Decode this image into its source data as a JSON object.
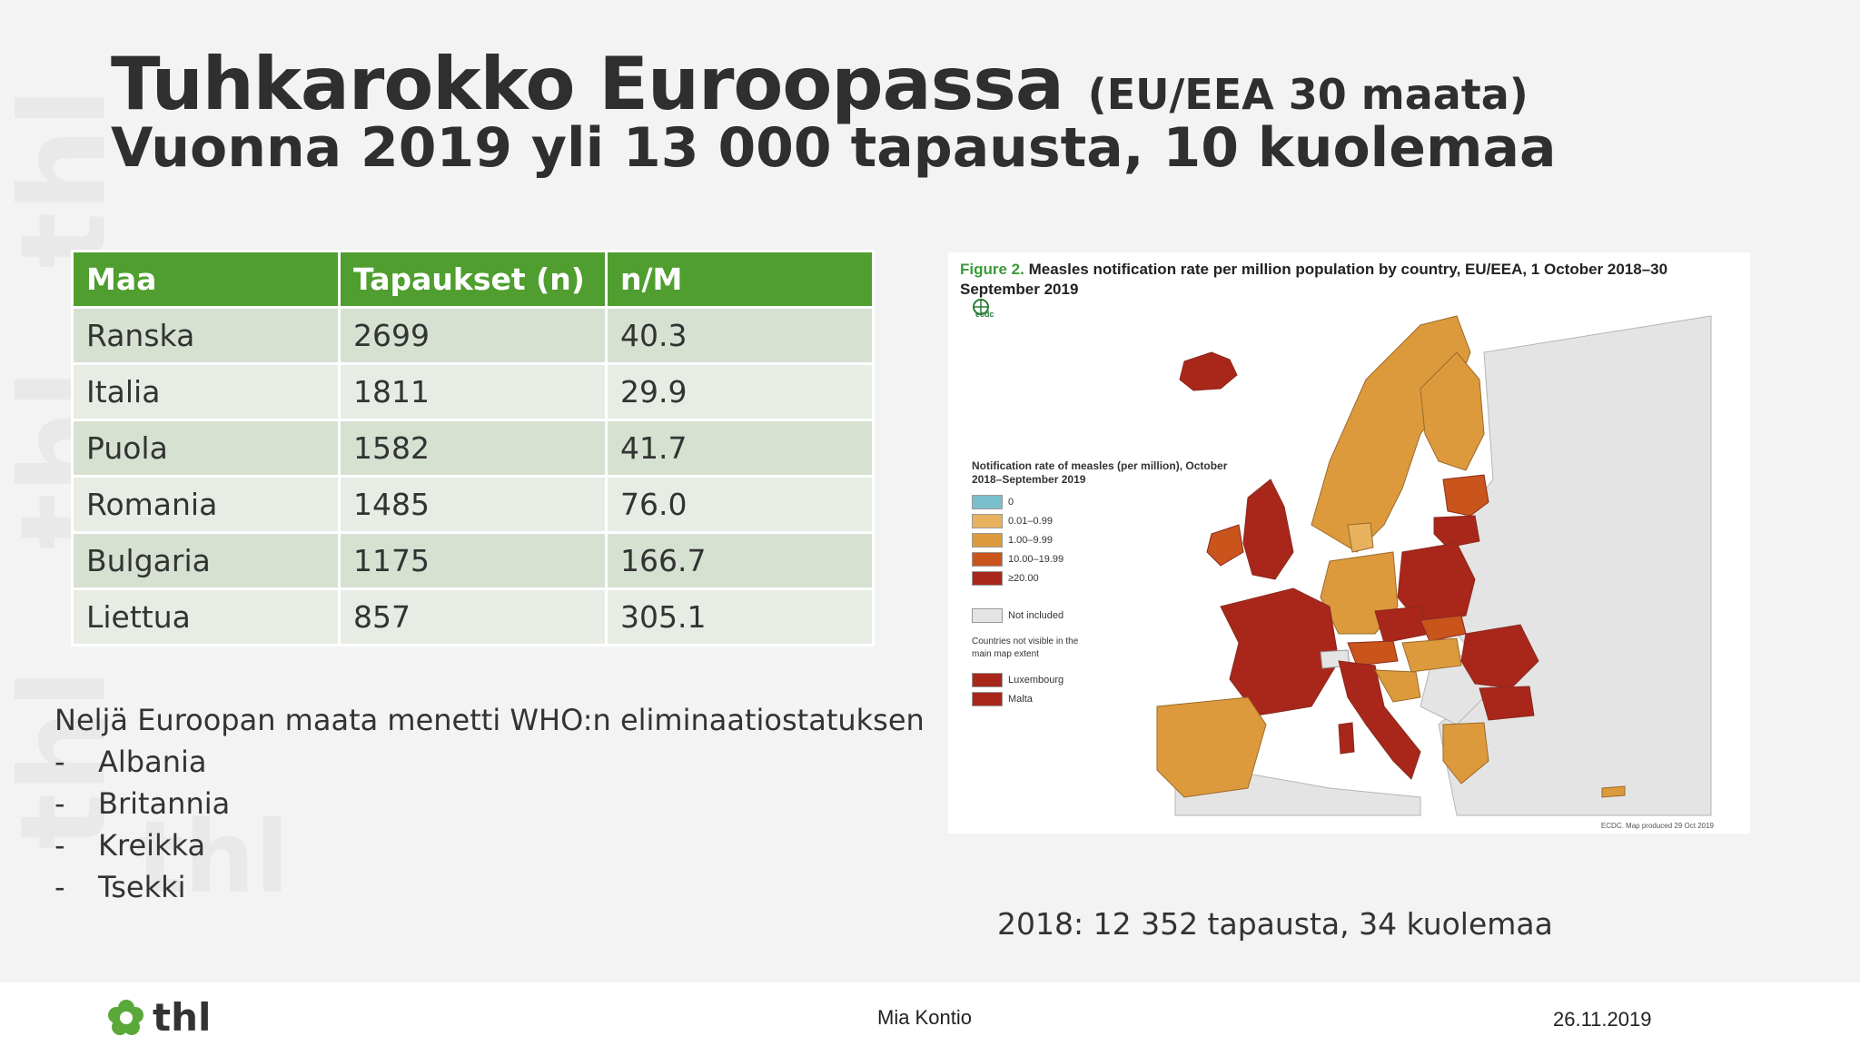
{
  "title": {
    "main": "Tuhkarokko Euroopassa",
    "scope": "(EU/EEA 30 maata)",
    "subtitle": "Vuonna 2019 yli 13 000 tapausta, 10 kuolemaa"
  },
  "table": {
    "headers": [
      "Maa",
      "Tapaukset (n)",
      "n/M"
    ],
    "rows": [
      [
        "Ranska",
        "2699",
        "40.3"
      ],
      [
        "Italia",
        "1811",
        "29.9"
      ],
      [
        "Puola",
        "1582",
        "41.7"
      ],
      [
        "Romania",
        "1485",
        "76.0"
      ],
      [
        "Bulgaria",
        "1175",
        "166.7"
      ],
      [
        "Liettua",
        "857",
        "305.1"
      ]
    ]
  },
  "who": {
    "lead": "Neljä Euroopan maata menetti WHO:n eliminaatiostatuksen",
    "items": [
      "Albania",
      "Britannia",
      "Kreikka",
      "Tsekki"
    ]
  },
  "figure": {
    "label": "Figure 2.",
    "title": "Measles notification rate per million population by country, EU/EEA, 1 October 2018–30 September 2019",
    "legend_title": "Notification rate of measles (per million), October 2018–September 2019",
    "legend": [
      {
        "label": "0",
        "color": "#7bbfcc"
      },
      {
        "label": "0.01–0.99",
        "color": "#e8b15e"
      },
      {
        "label": "1.00–9.99",
        "color": "#dd9a3c"
      },
      {
        "label": "10.00–19.99",
        "color": "#c9541c"
      },
      {
        "label": "≥20.00",
        "color": "#a8271a"
      },
      {
        "label": "Not included",
        "color": "#e4e4e4"
      }
    ],
    "not_visible_title": "Countries not visible in the main map extent",
    "not_visible": [
      {
        "label": "Luxembourg",
        "color": "#a8271a"
      },
      {
        "label": "Malta",
        "color": "#a8271a"
      }
    ],
    "credit": "ECDC. Map produced 29 Oct 2019",
    "logo_text": "ecdc"
  },
  "caption_2018": "2018: 12 352 tapausta, 34 kuolemaa",
  "footer": {
    "logo_text": "thl",
    "author": "Mia Kontio",
    "date": "26.11.2019"
  }
}
